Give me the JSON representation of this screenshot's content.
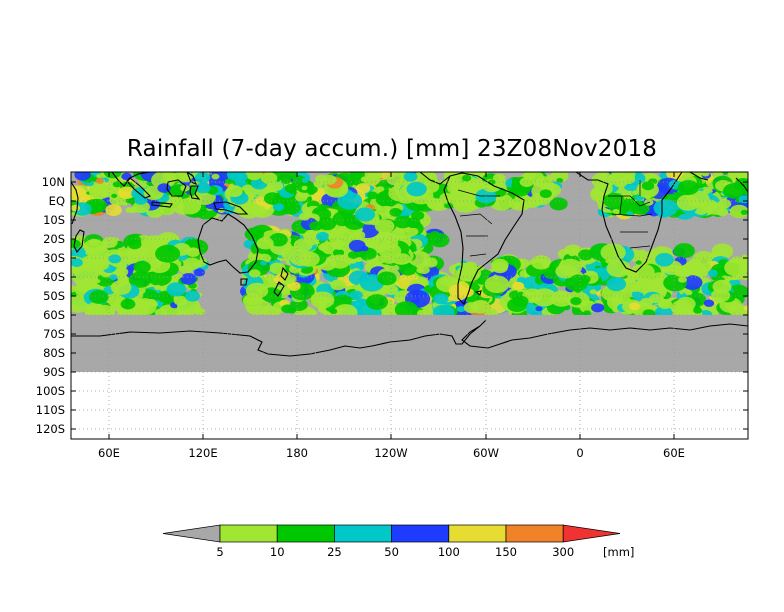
{
  "title": "Rainfall (7-day accum.) [mm] 23Z08Nov2018",
  "lat_labels": [
    "10N",
    "EQ",
    "10S",
    "20S",
    "30S",
    "40S",
    "50S",
    "60S",
    "70S",
    "80S",
    "90S",
    "100S",
    "110S",
    "120S"
  ],
  "lon_labels": [
    "60E",
    "120E",
    "180",
    "120W",
    "60W",
    "0",
    "60E"
  ],
  "colorbar": {
    "thresholds": [
      "5",
      "10",
      "25",
      "50",
      "100",
      "150",
      "300"
    ],
    "unit": "[mm]",
    "colors": {
      "below": "#a8a8a8",
      "c1": "#a0e632",
      "c2": "#00c800",
      "c3": "#00c8c8",
      "c4": "#1e3cff",
      "c5": "#e6dc32",
      "c6": "#f08228",
      "above": "#f03232"
    }
  },
  "colors": {
    "ocean_mask": "#a8a8a8",
    "coastline": "#000000",
    "grid": "#9a9a9a"
  }
}
